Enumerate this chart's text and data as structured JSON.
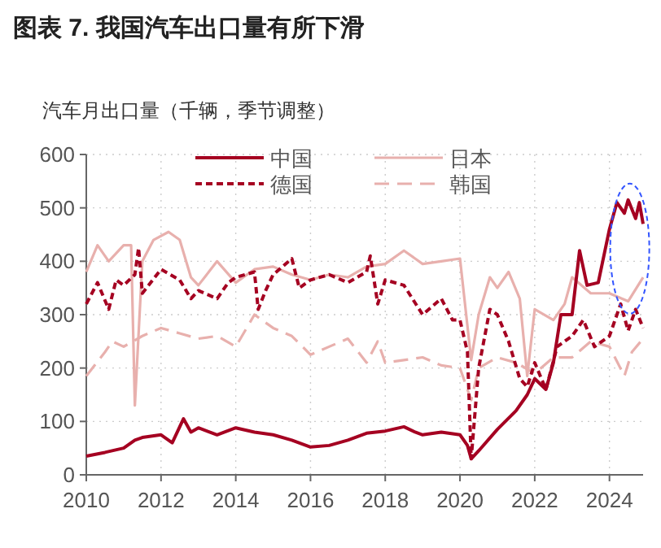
{
  "chart_data": {
    "type": "line",
    "title": "图表 7. 我国汽车出口量有所下滑",
    "ylabel": "汽车月出口量（千辆，季节调整）",
    "xlim": [
      2010,
      2024.9
    ],
    "xticks": [
      2010,
      2012,
      2014,
      2016,
      2018,
      2020,
      2022,
      2024
    ],
    "ylim": [
      0,
      600
    ],
    "yticks": [
      0,
      100,
      200,
      300,
      400,
      500,
      600
    ],
    "grid": true,
    "legend": "top",
    "marker": "none",
    "series": [
      {
        "name": "中国",
        "color": "#a50021",
        "line_style": "solid",
        "x": [
          2010,
          2010.5,
          2011,
          2011.3,
          2011.5,
          2012,
          2012.3,
          2012.6,
          2012.8,
          2013,
          2013.5,
          2014,
          2014.5,
          2015,
          2015.5,
          2016,
          2016.5,
          2017,
          2017.5,
          2018,
          2018.5,
          2018.8,
          2019,
          2019.5,
          2020,
          2020.2,
          2020.3,
          2020.5,
          2021,
          2021.5,
          2021.8,
          2022,
          2022.3,
          2022.5,
          2022.7,
          2023,
          2023.2,
          2023.4,
          2023.7,
          2024,
          2024.2,
          2024.4,
          2024.5,
          2024.7,
          2024.8,
          2024.9
        ],
        "values": [
          35,
          42,
          50,
          65,
          70,
          75,
          60,
          105,
          80,
          88,
          75,
          88,
          80,
          75,
          65,
          52,
          55,
          65,
          78,
          82,
          90,
          80,
          75,
          80,
          75,
          55,
          30,
          45,
          85,
          120,
          150,
          180,
          160,
          210,
          300,
          300,
          420,
          355,
          360,
          460,
          510,
          490,
          515,
          480,
          510,
          470
        ]
      },
      {
        "name": "日本",
        "color": "#e8b0ad",
        "line_style": "solid",
        "x": [
          2010,
          2010.3,
          2010.6,
          2011,
          2011.2,
          2011.3,
          2011.5,
          2011.8,
          2012.2,
          2012.5,
          2012.8,
          2013,
          2013.5,
          2014,
          2014.5,
          2015,
          2015.5,
          2016,
          2016.5,
          2017,
          2017.5,
          2018,
          2018.5,
          2019,
          2019.5,
          2020,
          2020.3,
          2020.5,
          2020.8,
          2021,
          2021.3,
          2021.6,
          2021.8,
          2022,
          2022.5,
          2022.8,
          2023,
          2023.5,
          2024,
          2024.5,
          2024.9
        ],
        "values": [
          380,
          430,
          400,
          430,
          430,
          130,
          400,
          440,
          455,
          440,
          370,
          355,
          400,
          360,
          385,
          390,
          375,
          365,
          375,
          370,
          390,
          395,
          420,
          395,
          400,
          405,
          215,
          300,
          370,
          350,
          380,
          330,
          185,
          310,
          290,
          320,
          370,
          340,
          340,
          325,
          370
        ]
      },
      {
        "name": "德国",
        "color": "#a50021",
        "line_style": "dashed",
        "x": [
          2010,
          2010.3,
          2010.6,
          2010.8,
          2011,
          2011.3,
          2011.4,
          2011.5,
          2012,
          2012.5,
          2012.8,
          2013,
          2013.5,
          2013.8,
          2014,
          2014.5,
          2014.6,
          2014.8,
          2015,
          2015.5,
          2015.7,
          2016,
          2016.5,
          2017,
          2017.5,
          2017.6,
          2017.8,
          2018,
          2018.5,
          2019,
          2019.5,
          2019.8,
          2020,
          2020.2,
          2020.3,
          2020.5,
          2020.8,
          2021,
          2021.3,
          2021.6,
          2021.8,
          2022,
          2022.3,
          2022.6,
          2023,
          2023.3,
          2023.6,
          2024,
          2024.3,
          2024.5,
          2024.7,
          2024.9
        ],
        "values": [
          320,
          360,
          310,
          365,
          355,
          375,
          425,
          340,
          385,
          365,
          330,
          345,
          330,
          360,
          370,
          380,
          310,
          345,
          375,
          405,
          350,
          365,
          375,
          360,
          380,
          410,
          320,
          365,
          355,
          300,
          330,
          290,
          290,
          230,
          30,
          200,
          310,
          300,
          250,
          180,
          165,
          210,
          160,
          240,
          260,
          290,
          240,
          260,
          320,
          270,
          310,
          275
        ]
      },
      {
        "name": "韩国",
        "color": "#e8b0ad",
        "line_style": "dashed",
        "x": [
          2010,
          2010.5,
          2010.7,
          2011,
          2011.5,
          2012,
          2012.5,
          2013,
          2013.5,
          2014,
          2014.5,
          2015,
          2015.5,
          2016,
          2016.5,
          2017,
          2017.5,
          2017.8,
          2018,
          2018.5,
          2019,
          2019.5,
          2020,
          2020.3,
          2020.5,
          2021,
          2021.5,
          2022,
          2022.5,
          2023,
          2023.5,
          2024,
          2024.4,
          2024.6,
          2024.9
        ],
        "values": [
          185,
          230,
          250,
          240,
          260,
          275,
          265,
          255,
          260,
          240,
          300,
          275,
          260,
          225,
          240,
          255,
          210,
          250,
          210,
          215,
          220,
          205,
          200,
          140,
          200,
          220,
          210,
          190,
          220,
          220,
          250,
          240,
          185,
          230,
          255
        ]
      }
    ]
  }
}
